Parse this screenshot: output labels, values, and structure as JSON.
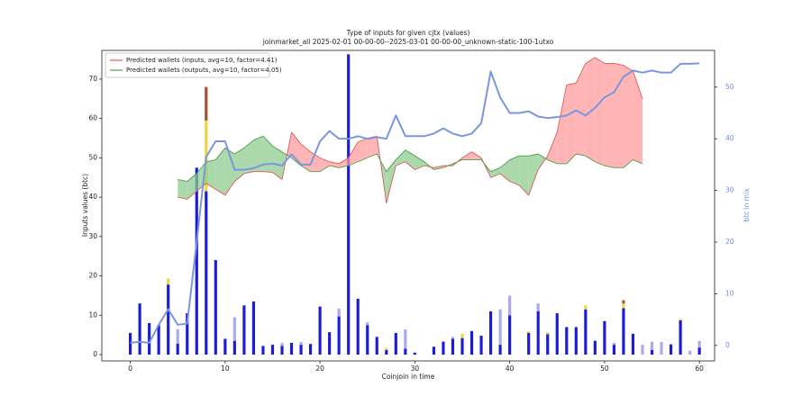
{
  "chart_data": {
    "type": "bar",
    "title": "Type of inputs for given cjtx (values)",
    "subtitle": "joinmarket_all 2025-02-01 00-00-00--2025-03-01 00-00-00_unknown-static-100-1utxo",
    "x_label": "Coinjoin in time",
    "y_label": "Inputs values (btc)",
    "y2_label": "btc in mix",
    "legend": "upper left",
    "x": [
      0,
      1,
      2,
      3,
      4,
      5,
      6,
      7,
      8,
      9,
      10,
      11,
      12,
      13,
      14,
      15,
      16,
      17,
      18,
      19,
      20,
      21,
      22,
      23,
      24,
      25,
      26,
      27,
      28,
      29,
      30,
      31,
      32,
      33,
      34,
      35,
      36,
      37,
      38,
      39,
      40,
      41,
      42,
      43,
      44,
      45,
      46,
      47,
      48,
      49,
      50,
      51,
      52,
      53,
      54,
      55,
      56,
      57,
      58,
      59,
      60
    ],
    "xlim": [
      -3,
      61.6
    ],
    "xticks": [
      0,
      10,
      20,
      30,
      40,
      50,
      60
    ],
    "ylim": [
      -1.6,
      77.3
    ],
    "yticks": [
      0,
      10,
      20,
      30,
      40,
      50,
      60,
      70
    ],
    "y2lim": [
      -3,
      57.1
    ],
    "y2ticks": [
      0,
      10,
      20,
      30,
      40,
      50
    ],
    "y2_color": "#6f8ee6",
    "series": [
      {
        "kind": "bar",
        "color": "#1c1cd8",
        "values": [
          5.5,
          13,
          8,
          7.5,
          17.8,
          2.8,
          10.5,
          47.5,
          41.5,
          24,
          4,
          3.5,
          12.5,
          13.5,
          2.2,
          2.5,
          2.2,
          3,
          2.5,
          2.7,
          12.2,
          5.7,
          9.7,
          76.3,
          14.2,
          7.5,
          4.5,
          1.2,
          5.5,
          1.5,
          0.5,
          0,
          2,
          3.3,
          4,
          4.2,
          6,
          4.8,
          11,
          2.5,
          10,
          0,
          5.5,
          11,
          5.2,
          10.5,
          7,
          7,
          11.5,
          3.5,
          8.5,
          2.5,
          11.8,
          5.3,
          0,
          1.2,
          0,
          2.6,
          8.7,
          0,
          1.8
        ]
      },
      {
        "kind": "bar",
        "color": "#aaaaee",
        "values": [
          0,
          0,
          0,
          0,
          0,
          3.7,
          0,
          0,
          0,
          0,
          0,
          6,
          0,
          0,
          0,
          0,
          0.8,
          0,
          0.7,
          0,
          0,
          0,
          2,
          0,
          0,
          0.7,
          0,
          0,
          0,
          4.9,
          0,
          0,
          0,
          0,
          0.5,
          0,
          0,
          0,
          0,
          9,
          5,
          0,
          0,
          2,
          0,
          0,
          0,
          0,
          0,
          0,
          0,
          0.5,
          0,
          0,
          2.5,
          2.1,
          3.2,
          0,
          0,
          1,
          1.7
        ]
      },
      {
        "kind": "bar",
        "color": "#f2d33c",
        "values": [
          0,
          0,
          0,
          0,
          1.5,
          0,
          0,
          0,
          18,
          0,
          0,
          0,
          0,
          0,
          0,
          0,
          0,
          0,
          0,
          0,
          0,
          0,
          0,
          0,
          0,
          0,
          0,
          0.5,
          0,
          0,
          0,
          0,
          0,
          0,
          0,
          1.1,
          0,
          0,
          0,
          0,
          0,
          0,
          0.4,
          0,
          0.5,
          0,
          0,
          0,
          1,
          0,
          0,
          0,
          1.2,
          0,
          0,
          0,
          0,
          0,
          0.4,
          0,
          0
        ]
      },
      {
        "kind": "bar",
        "color": "#a0522d",
        "values": [
          0,
          0,
          0,
          0,
          0,
          0,
          0,
          0,
          8.5,
          0,
          0,
          0,
          0,
          0,
          0,
          0,
          0,
          0,
          0,
          0,
          0,
          0,
          0,
          0,
          0,
          0,
          0,
          0,
          0,
          0,
          0,
          0,
          0,
          0,
          0,
          0,
          0,
          0,
          0,
          0,
          0,
          0,
          0,
          0,
          0,
          0,
          0,
          0,
          0,
          0,
          0,
          0,
          0.8,
          0,
          0,
          0,
          0,
          0,
          0,
          0,
          0
        ]
      },
      {
        "kind": "area",
        "name": "Predicted wallets (inputs, avg=10, factor=4.41)",
        "color": "#e05a5a",
        "fill": "#ff9c9c",
        "values": [
          null,
          null,
          null,
          null,
          null,
          40,
          39.5,
          41.5,
          43.5,
          42,
          40.5,
          44,
          46,
          46.5,
          46.5,
          46.3,
          44.5,
          56.5,
          53.5,
          51.5,
          50,
          49,
          48.5,
          50,
          54,
          55,
          55.5,
          38.5,
          48,
          49,
          47,
          48,
          47.5,
          48,
          48,
          50,
          51.5,
          50,
          45,
          46,
          44,
          43,
          40.5,
          47,
          50.5,
          56.5,
          68.5,
          69,
          74,
          75.5,
          74,
          74,
          73.5,
          72,
          65,
          null,
          null,
          null,
          null,
          null,
          null
        ]
      },
      {
        "kind": "area",
        "name": "Predicted wallets (outputs, avg=10, factor=4.05)",
        "color": "#4f9e4f",
        "fill": "#8fcc8f",
        "values": [
          null,
          null,
          null,
          null,
          null,
          44.5,
          44,
          46,
          49,
          49.5,
          52.5,
          51,
          52.5,
          54.5,
          55.5,
          53,
          51.5,
          50,
          48,
          46.5,
          46.5,
          48,
          47.5,
          48,
          49,
          50,
          51,
          46.5,
          49.5,
          52,
          50.5,
          49,
          47,
          47.5,
          48.5,
          49.5,
          49.5,
          49.5,
          46.5,
          47.5,
          49.5,
          50.5,
          50.5,
          51,
          49.5,
          48.5,
          48.5,
          51,
          50.5,
          49,
          48,
          47.5,
          47.5,
          49.5,
          48.5,
          null,
          null,
          null,
          null,
          null,
          null
        ]
      },
      {
        "kind": "line",
        "axis": "y2",
        "color": "#7b96e0",
        "values": [
          0.5,
          0.7,
          0.5,
          4,
          7,
          4,
          4.2,
          20,
          36.5,
          39.5,
          39.5,
          34,
          34,
          34.3,
          35,
          35.2,
          34.8,
          37,
          35,
          35,
          39.5,
          41.5,
          40,
          40,
          40.5,
          40,
          40.3,
          40,
          44.5,
          40.5,
          40.5,
          40.5,
          41,
          42,
          41,
          40.5,
          41,
          43,
          53,
          48,
          45,
          45,
          45.3,
          44.3,
          44,
          44.2,
          44.5,
          45.5,
          44.5,
          46,
          48,
          49,
          52,
          53.2,
          52.8,
          53.2,
          52.8,
          52.8,
          54.5,
          54.5,
          54.6
        ]
      }
    ]
  }
}
